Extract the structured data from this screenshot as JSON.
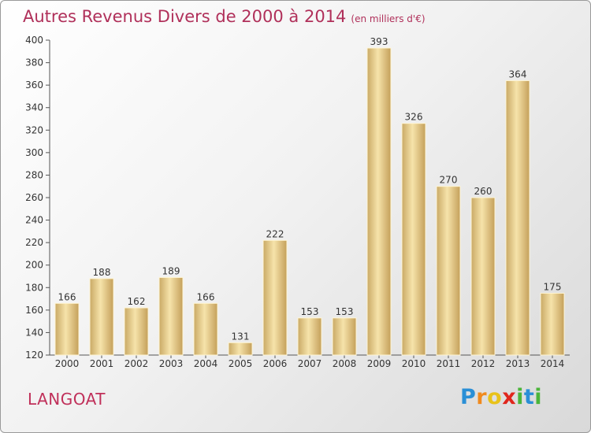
{
  "title": "Autres Revenus Divers de 2000 à 2014",
  "subtitle": "(en milliers d'€)",
  "commune": "LANGOAT",
  "logo": {
    "letters": [
      "P",
      "r",
      "o",
      "x",
      "i",
      "t",
      "i"
    ],
    "colors": [
      "#2a8fd6",
      "#f08a1e",
      "#e8c21a",
      "#e0261c",
      "#4bb53a",
      "#2a8fd6",
      "#4bb53a"
    ]
  },
  "colors": {
    "title": "#b0305a",
    "bar_light": "#f5e2a8",
    "bar_dark": "#c8a65e"
  },
  "chart_data": {
    "type": "bar",
    "categories": [
      "2000",
      "2001",
      "2002",
      "2003",
      "2004",
      "2005",
      "2006",
      "2007",
      "2008",
      "2009",
      "2010",
      "2011",
      "2012",
      "2013",
      "2014"
    ],
    "values": [
      166,
      188,
      162,
      189,
      166,
      131,
      222,
      153,
      153,
      393,
      326,
      270,
      260,
      364,
      175
    ],
    "ylim": [
      120,
      400
    ],
    "yticks": [
      120,
      140,
      160,
      180,
      200,
      220,
      240,
      260,
      280,
      300,
      320,
      340,
      360,
      380,
      400
    ],
    "grid": false
  }
}
